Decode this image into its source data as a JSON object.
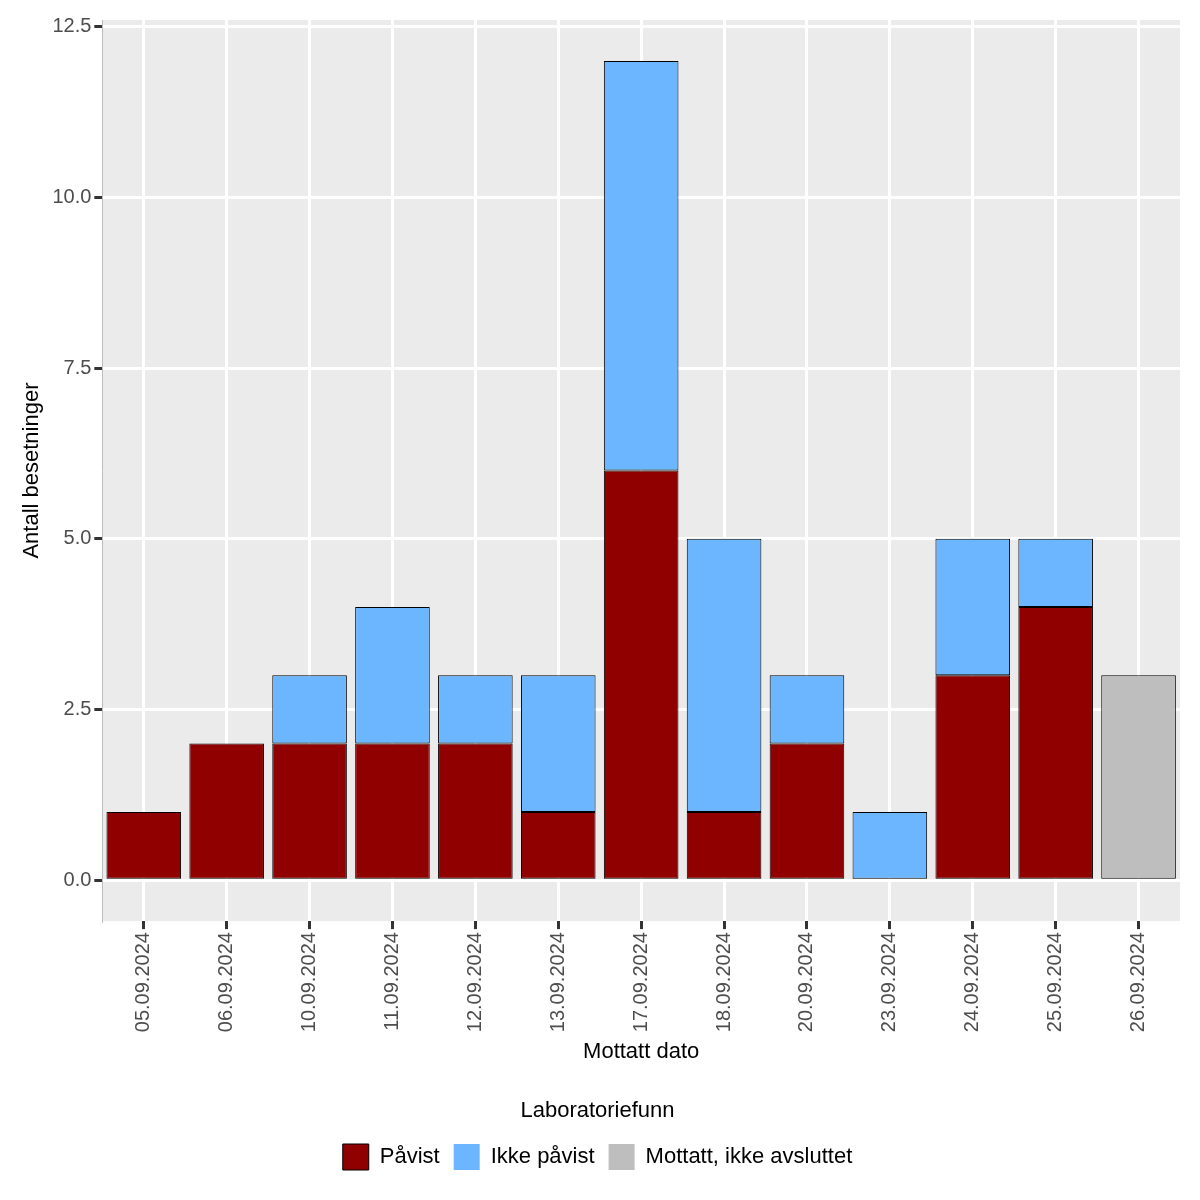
{
  "chart_data": {
    "type": "bar",
    "x_label": "Mottatt dato",
    "y_label": "Antall besetninger",
    "legend_title": "Laboratoriefunn",
    "categories": [
      "05.09.2024",
      "06.09.2024",
      "10.09.2024",
      "11.09.2024",
      "12.09.2024",
      "13.09.2024",
      "17.09.2024",
      "18.09.2024",
      "20.09.2024",
      "23.09.2024",
      "24.09.2024",
      "25.09.2024",
      "26.09.2024"
    ],
    "series": [
      {
        "name": "Påvist",
        "color": "#910000",
        "values": [
          1,
          2,
          2,
          2,
          2,
          1,
          6,
          1,
          2,
          0,
          3,
          4,
          0
        ]
      },
      {
        "name": "Ikke påvist",
        "color": "#6CB5FF",
        "values": [
          0,
          0,
          1,
          2,
          1,
          2,
          6,
          4,
          1,
          1,
          2,
          1,
          0
        ]
      },
      {
        "name": "Mottatt, ikke avsluttet",
        "color": "#BEBEBE",
        "values": [
          0,
          0,
          0,
          0,
          0,
          0,
          0,
          0,
          0,
          0,
          0,
          0,
          3
        ]
      }
    ],
    "ylim": [
      -0.6,
      12.6
    ],
    "yticks": [
      {
        "value": 0,
        "label": "0.0"
      },
      2.5,
      {
        "value": 5,
        "label": "5.0"
      },
      7.5,
      {
        "value": 10,
        "label": "10.0"
      },
      12.5
    ],
    "stacked": true,
    "grid": true,
    "legend": "bottom"
  }
}
